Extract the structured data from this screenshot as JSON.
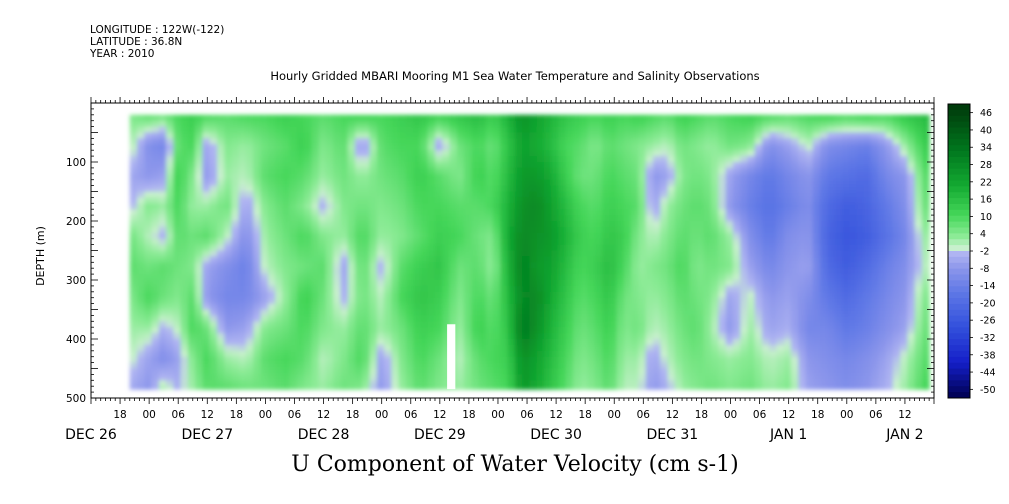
{
  "header": {
    "longitude": "LONGITUDE : 122W(-122)",
    "latitude": "LATITUDE : 36.8N",
    "year": "YEAR : 2010"
  },
  "chart_data": {
    "type": "heatmap",
    "title": "Hourly Gridded MBARI Mooring M1 Sea Water Temperature and Salinity Observations",
    "subtitle": "U Component of Water Velocity (cm s-1)",
    "ylabel": "DEPTH (m)",
    "ylim": [
      0,
      500
    ],
    "y_reversed": true,
    "y_ticks": [
      100,
      200,
      300,
      400,
      500
    ],
    "xlim": [
      -12,
      162
    ],
    "x_hour_ticks": [
      {
        "t": -6,
        "label": "18"
      },
      {
        "t": 0,
        "label": "00"
      },
      {
        "t": 6,
        "label": "06"
      },
      {
        "t": 12,
        "label": "12"
      },
      {
        "t": 18,
        "label": "18"
      },
      {
        "t": 24,
        "label": "00"
      },
      {
        "t": 30,
        "label": "06"
      },
      {
        "t": 36,
        "label": "12"
      },
      {
        "t": 42,
        "label": "18"
      },
      {
        "t": 48,
        "label": "00"
      },
      {
        "t": 54,
        "label": "06"
      },
      {
        "t": 60,
        "label": "12"
      },
      {
        "t": 66,
        "label": "18"
      },
      {
        "t": 72,
        "label": "00"
      },
      {
        "t": 78,
        "label": "06"
      },
      {
        "t": 84,
        "label": "12"
      },
      {
        "t": 90,
        "label": "18"
      },
      {
        "t": 96,
        "label": "00"
      },
      {
        "t": 102,
        "label": "06"
      },
      {
        "t": 108,
        "label": "12"
      },
      {
        "t": 114,
        "label": "18"
      },
      {
        "t": 120,
        "label": "00"
      },
      {
        "t": 126,
        "label": "06"
      },
      {
        "t": 132,
        "label": "12"
      },
      {
        "t": 138,
        "label": "18"
      },
      {
        "t": 144,
        "label": "00"
      },
      {
        "t": 150,
        "label": "06"
      },
      {
        "t": 156,
        "label": "12"
      }
    ],
    "x_day_labels": [
      {
        "t": -12,
        "label": "DEC 26"
      },
      {
        "t": 12,
        "label": "DEC 27"
      },
      {
        "t": 36,
        "label": "DEC 28"
      },
      {
        "t": 60,
        "label": "DEC 29"
      },
      {
        "t": 84,
        "label": "DEC 30"
      },
      {
        "t": 108,
        "label": "DEC 31"
      },
      {
        "t": 132,
        "label": "JAN  1"
      },
      {
        "t": 156,
        "label": "JAN  2"
      }
    ],
    "data_time_range": [
      -4,
      161
    ],
    "data_depth_range": [
      20,
      485
    ],
    "missing_data": [
      {
        "t": [
          61.5,
          63.2
        ],
        "depth": [
          375,
          485
        ]
      }
    ],
    "colorbar": {
      "min": -50,
      "max": 50,
      "labels": [
        "46",
        "40",
        "34",
        "28",
        "22",
        "16",
        "10",
        "4",
        "-2",
        "-8",
        "-14",
        "-20",
        "-26",
        "-32",
        "-38",
        "-44",
        "-50"
      ]
    },
    "columns": [
      {
        "t": -4,
        "v": [
          6,
          4,
          -3,
          -2,
          8,
          10,
          6,
          4,
          2,
          -3
        ]
      },
      {
        "t": 0,
        "v": [
          10,
          -8,
          -6,
          6,
          2,
          8,
          12,
          4,
          -4,
          -6
        ]
      },
      {
        "t": 3,
        "v": [
          8,
          -10,
          -4,
          4,
          -2,
          10,
          8,
          -2,
          -8,
          4
        ]
      },
      {
        "t": 6,
        "v": [
          12,
          10,
          14,
          12,
          10,
          8,
          6,
          2,
          -4,
          -2
        ]
      },
      {
        "t": 9,
        "v": [
          14,
          12,
          6,
          4,
          8,
          6,
          10,
          12,
          6,
          4
        ]
      },
      {
        "t": 12,
        "v": [
          12,
          -4,
          -6,
          4,
          10,
          -4,
          -6,
          8,
          12,
          10
        ]
      },
      {
        "t": 16,
        "v": [
          10,
          6,
          4,
          8,
          2,
          -8,
          -10,
          -6,
          4,
          10
        ]
      },
      {
        "t": 20,
        "v": [
          12,
          4,
          2,
          -4,
          -8,
          -12,
          -10,
          -4,
          2,
          8
        ]
      },
      {
        "t": 24,
        "v": [
          12,
          8,
          10,
          6,
          4,
          2,
          -4,
          6,
          10,
          8
        ]
      },
      {
        "t": 28,
        "v": [
          14,
          10,
          12,
          10,
          8,
          6,
          4,
          8,
          12,
          10
        ]
      },
      {
        "t": 32,
        "v": [
          12,
          14,
          10,
          6,
          12,
          8,
          14,
          12,
          10,
          6
        ]
      },
      {
        "t": 36,
        "v": [
          10,
          6,
          4,
          -2,
          6,
          10,
          8,
          6,
          2,
          4
        ]
      },
      {
        "t": 40,
        "v": [
          12,
          10,
          8,
          6,
          4,
          -4,
          -2,
          4,
          6,
          8
        ]
      },
      {
        "t": 44,
        "v": [
          14,
          -6,
          4,
          8,
          12,
          10,
          8,
          10,
          12,
          6
        ]
      },
      {
        "t": 48,
        "v": [
          12,
          10,
          8,
          6,
          4,
          -2,
          2,
          4,
          -4,
          -6
        ]
      },
      {
        "t": 52,
        "v": [
          14,
          12,
          10,
          8,
          6,
          10,
          12,
          8,
          6,
          4
        ]
      },
      {
        "t": 56,
        "v": [
          16,
          12,
          14,
          12,
          10,
          14,
          16,
          14,
          12,
          10
        ]
      },
      {
        "t": 60,
        "v": [
          14,
          -4,
          10,
          12,
          14,
          16,
          14,
          12,
          8,
          6
        ]
      },
      {
        "t": 64,
        "v": [
          16,
          8,
          6,
          10,
          12,
          8,
          6,
          4,
          2,
          4
        ]
      },
      {
        "t": 68,
        "v": [
          18,
          12,
          14,
          10,
          8,
          10,
          12,
          14,
          10,
          8
        ]
      },
      {
        "t": 71,
        "v": [
          14,
          8,
          10,
          12,
          6,
          4,
          8,
          10,
          12,
          10
        ]
      },
      {
        "t": 74,
        "v": [
          20,
          16,
          18,
          20,
          22,
          20,
          18,
          16,
          14,
          12
        ]
      },
      {
        "t": 77,
        "v": [
          28,
          24,
          26,
          28,
          30,
          32,
          30,
          34,
          28,
          26
        ]
      },
      {
        "t": 80,
        "v": [
          24,
          22,
          26,
          30,
          28,
          26,
          30,
          28,
          24,
          22
        ]
      },
      {
        "t": 83,
        "v": [
          20,
          18,
          22,
          24,
          26,
          24,
          22,
          20,
          18,
          16
        ]
      },
      {
        "t": 86,
        "v": [
          16,
          12,
          14,
          18,
          20,
          18,
          16,
          14,
          12,
          10
        ]
      },
      {
        "t": 89,
        "v": [
          14,
          10,
          8,
          12,
          14,
          12,
          10,
          8,
          6,
          4
        ]
      },
      {
        "t": 92,
        "v": [
          12,
          6,
          8,
          10,
          12,
          14,
          12,
          10,
          8,
          6
        ]
      },
      {
        "t": 95,
        "v": [
          14,
          10,
          12,
          14,
          16,
          18,
          16,
          14,
          12,
          10
        ]
      },
      {
        "t": 98,
        "v": [
          12,
          8,
          10,
          12,
          14,
          12,
          8,
          6,
          4,
          2
        ]
      },
      {
        "t": 101,
        "v": [
          14,
          6,
          8,
          10,
          6,
          4,
          6,
          8,
          4,
          2
        ]
      },
      {
        "t": 104,
        "v": [
          12,
          4,
          -6,
          -4,
          2,
          6,
          4,
          2,
          -4,
          -6
        ]
      },
      {
        "t": 107,
        "v": [
          10,
          2,
          -4,
          4,
          6,
          8,
          6,
          4,
          2,
          -2
        ]
      },
      {
        "t": 110,
        "v": [
          14,
          8,
          6,
          8,
          10,
          12,
          10,
          8,
          6,
          4
        ]
      },
      {
        "t": 113,
        "v": [
          12,
          6,
          8,
          10,
          8,
          6,
          8,
          10,
          8,
          6
        ]
      },
      {
        "t": 116,
        "v": [
          10,
          4,
          6,
          8,
          10,
          8,
          6,
          4,
          6,
          8
        ]
      },
      {
        "t": 120,
        "v": [
          12,
          8,
          -4,
          -6,
          4,
          6,
          -4,
          -6,
          4,
          6
        ]
      },
      {
        "t": 124,
        "v": [
          14,
          6,
          -10,
          -12,
          -8,
          -4,
          2,
          4,
          6,
          8
        ]
      },
      {
        "t": 128,
        "v": [
          12,
          -8,
          -14,
          -16,
          -14,
          -10,
          -6,
          -4,
          2,
          4
        ]
      },
      {
        "t": 132,
        "v": [
          10,
          -4,
          -10,
          -12,
          -8,
          -6,
          -4,
          -2,
          4,
          6
        ]
      },
      {
        "t": 136,
        "v": [
          12,
          2,
          -6,
          -8,
          -6,
          -4,
          -8,
          -10,
          -6,
          -4
        ]
      },
      {
        "t": 140,
        "v": [
          14,
          -8,
          -14,
          -18,
          -20,
          -18,
          -14,
          -10,
          -8,
          -6
        ]
      },
      {
        "t": 144,
        "v": [
          12,
          -10,
          -16,
          -22,
          -24,
          -22,
          -18,
          -14,
          -10,
          -8
        ]
      },
      {
        "t": 148,
        "v": [
          14,
          -12,
          -18,
          -20,
          -22,
          -18,
          -14,
          -12,
          -8,
          -6
        ]
      },
      {
        "t": 152,
        "v": [
          12,
          -6,
          -10,
          -14,
          -16,
          -12,
          -10,
          -8,
          -4,
          -2
        ]
      },
      {
        "t": 156,
        "v": [
          16,
          4,
          -6,
          -8,
          -10,
          -8,
          -6,
          -4,
          2,
          4
        ]
      },
      {
        "t": 160,
        "v": [
          18,
          14,
          10,
          8,
          4,
          2,
          6,
          8,
          10,
          12
        ]
      }
    ]
  }
}
